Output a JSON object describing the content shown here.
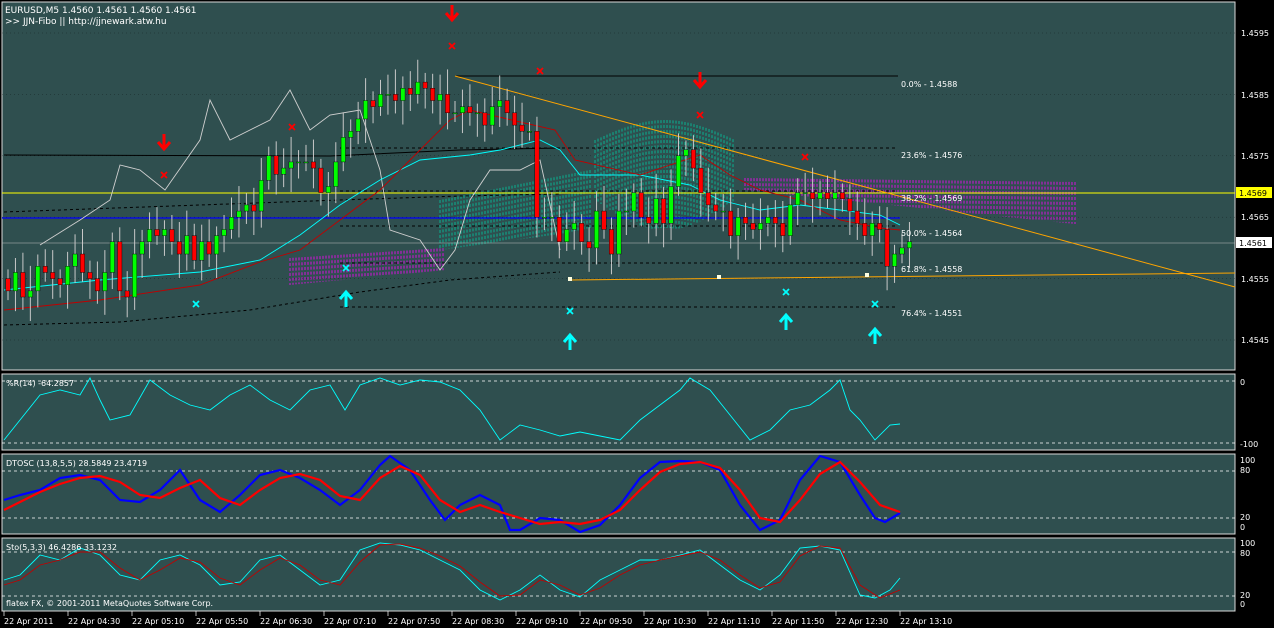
{
  "header": {
    "symbol_line": "EURUSD,M5  1.4560 1.4561 1.4560 1.4561",
    "indicator_line": ">> JJN-Fibo || http://jjnewark.atw.hu"
  },
  "colors": {
    "background": "#2f4f4f",
    "grid": "#000000",
    "bull_candle": "#00ff00",
    "bear_candle": "#ff0000",
    "trendline": "#ffa500",
    "support": "#ffa500",
    "ask_line": "#ffff00",
    "blue_line": "#0000ff",
    "cloud": "#ff00ff",
    "cyan": "#00ffff",
    "bid_line": "#c0c0c0"
  },
  "main_axis": {
    "ticks": [
      "1.4595",
      "1.4585",
      "1.4575",
      "1.4565",
      "1.4555",
      "1.4545"
    ],
    "price_labels": [
      {
        "text": "1.4569",
        "style": "yellow"
      },
      {
        "text": "1.4561",
        "style": "white"
      }
    ]
  },
  "fibo_levels": [
    {
      "label": "0.0% - 1.4588"
    },
    {
      "label": "23.6% - 1.4576"
    },
    {
      "label": "38.2% - 1.4569"
    },
    {
      "label": "50.0% - 1.4564"
    },
    {
      "label": "61.8% - 1.4558"
    },
    {
      "label": "76.4% - 1.4551"
    }
  ],
  "arrows": {
    "down": [
      "sell-arrow",
      "sell-arrow",
      "sell-arrow"
    ],
    "up": [
      "buy-arrow",
      "buy-arrow",
      "buy-arrow",
      "buy-arrow"
    ]
  },
  "panels": {
    "wpr": {
      "title": "%R(14) -64.2857",
      "ticks": [
        "0",
        "-100"
      ]
    },
    "dtosc": {
      "title": "DTOSC (13,8,5,5) 28.5849 23.4719",
      "ticks": [
        "100",
        "80",
        "20",
        "0"
      ]
    },
    "sto": {
      "title": "Sto(5,3,3) 46.4286 33.1232",
      "ticks": [
        "100",
        "80",
        "20",
        "0"
      ]
    }
  },
  "copyright": "flatex FX, © 2001-2011 MetaQuotes Software Corp.",
  "time_labels": [
    "22 Apr 2011",
    "22 Apr 04:30",
    "22 Apr 05:10",
    "22 Apr 05:50",
    "22 Apr 06:30",
    "22 Apr 07:10",
    "22 Apr 07:50",
    "22 Apr 08:30",
    "22 Apr 09:10",
    "22 Apr 09:50",
    "22 Apr 10:30",
    "22 Apr 11:10",
    "22 Apr 11:50",
    "22 Apr 12:30",
    "22 Apr 13:10"
  ],
  "chart_data": {
    "type": "candlestick",
    "symbol": "EURUSD",
    "timeframe": "M5",
    "last_quote": {
      "open": 1.456,
      "high": 1.4561,
      "low": 1.456,
      "close": 1.4561
    },
    "ylim": [
      1.4542,
      1.4598
    ],
    "horizontal_lines": {
      "ask": 1.4569,
      "bid": 1.4561
    },
    "fibonacci": [
      {
        "pct": 0.0,
        "price": 1.4588
      },
      {
        "pct": 23.6,
        "price": 1.4576
      },
      {
        "pct": 38.2,
        "price": 1.4569
      },
      {
        "pct": 50.0,
        "price": 1.4564
      },
      {
        "pct": 61.8,
        "price": 1.4558
      },
      {
        "pct": 76.4,
        "price": 1.4551
      }
    ],
    "indicators": [
      {
        "name": "%R(14)",
        "values": [
          -64.2857
        ]
      },
      {
        "name": "DTOSC (13,8,5,5)",
        "values": [
          28.5849,
          23.4719
        ]
      },
      {
        "name": "Sto(5,3,3)",
        "values": [
          46.4286,
          33.1232
        ]
      }
    ],
    "closes": [
      1.4553,
      1.4556,
      1.4552,
      1.4553,
      1.4557,
      1.4556,
      1.4555,
      1.4554,
      1.4557,
      1.4559,
      1.4556,
      1.4555,
      1.4553,
      1.4556,
      1.4561,
      1.4553,
      1.4552,
      1.4559,
      1.4561,
      1.4563,
      1.4562,
      1.4563,
      1.4561,
      1.4559,
      1.4562,
      1.4558,
      1.4561,
      1.4559,
      1.4562,
      1.4563,
      1.4565,
      1.4566,
      1.4567,
      1.4566,
      1.4571,
      1.4575,
      1.4572,
      1.4573,
      1.4574,
      1.4574,
      1.4574,
      1.4573,
      1.4569,
      1.457,
      1.4574,
      1.4578,
      1.4579,
      1.4581,
      1.4584,
      1.4583,
      1.4585,
      1.4585,
      1.4584,
      1.4586,
      1.4585,
      1.4587,
      1.4586,
      1.4584,
      1.4585,
      1.4582,
      1.4582,
      1.4583,
      1.4582,
      1.4582,
      1.458,
      1.4583,
      1.4584,
      1.4582,
      1.458,
      1.4579,
      1.4579,
      1.4565,
      1.4565,
      1.4565,
      1.4561,
      1.4563,
      1.4564,
      1.4561,
      1.456,
      1.4566,
      1.4563,
      1.4559,
      1.4566,
      1.4566,
      1.4569,
      1.4565,
      1.4564,
      1.4568,
      1.4564,
      1.457,
      1.4575,
      1.4576,
      1.4573,
      1.4569,
      1.4567,
      1.4566,
      1.4566,
      1.4562,
      1.4565,
      1.4564,
      1.4563,
      1.4564,
      1.4565,
      1.4564,
      1.4562,
      1.4567,
      1.4569,
      1.4569,
      1.4568,
      1.4569,
      1.4568,
      1.4569,
      1.4568,
      1.4566,
      1.4564,
      1.4562,
      1.4564,
      1.4563,
      1.4557,
      1.4559,
      1.456,
      1.4561
    ]
  }
}
